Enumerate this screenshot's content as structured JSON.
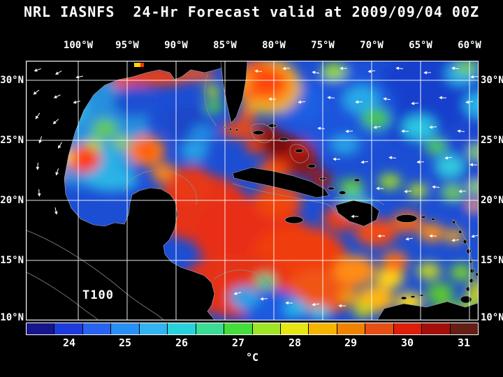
{
  "title": "NRL IASNFS  24-Hr Forecast valid at 2009/09/04 00Z",
  "map": {
    "region_label": "T100",
    "lon_labels": [
      "100°W",
      "95°W",
      "90°W",
      "85°W",
      "80°W",
      "75°W",
      "70°W",
      "65°W",
      "60°W"
    ],
    "lat_labels": [
      "30°N",
      "25°N",
      "20°N",
      "15°N",
      "10°N"
    ]
  },
  "colorbar": {
    "unit_label": "°C",
    "tick_labels": [
      "24",
      "25",
      "26",
      "27",
      "28",
      "29",
      "30",
      "31"
    ],
    "segment_colors": [
      "#16168c",
      "#1e3cdc",
      "#2864f0",
      "#2890f5",
      "#32b4f0",
      "#28d2dc",
      "#3cdc96",
      "#46dc3c",
      "#a0e628",
      "#e6e614",
      "#f5b400",
      "#f08200",
      "#e65014",
      "#dc1e0a",
      "#a50f0a",
      "#641e14"
    ]
  },
  "chart_data": {
    "type": "heatmap",
    "title": "NRL IASNFS  24-Hr Forecast valid at 2009/09/04 00Z",
    "field_label": "T100",
    "unit": "°C",
    "x_ticks": [
      "100°W",
      "95°W",
      "90°W",
      "85°W",
      "80°W",
      "75°W",
      "70°W",
      "65°W",
      "60°W"
    ],
    "y_ticks": [
      "30°N",
      "25°N",
      "20°N",
      "15°N",
      "10°N"
    ],
    "colorbar_ticks": [
      24,
      25,
      26,
      27,
      28,
      29,
      30,
      31
    ],
    "colorbar_range": [
      23.5,
      31.5
    ],
    "legend_position": "bottom",
    "grid": true
  }
}
